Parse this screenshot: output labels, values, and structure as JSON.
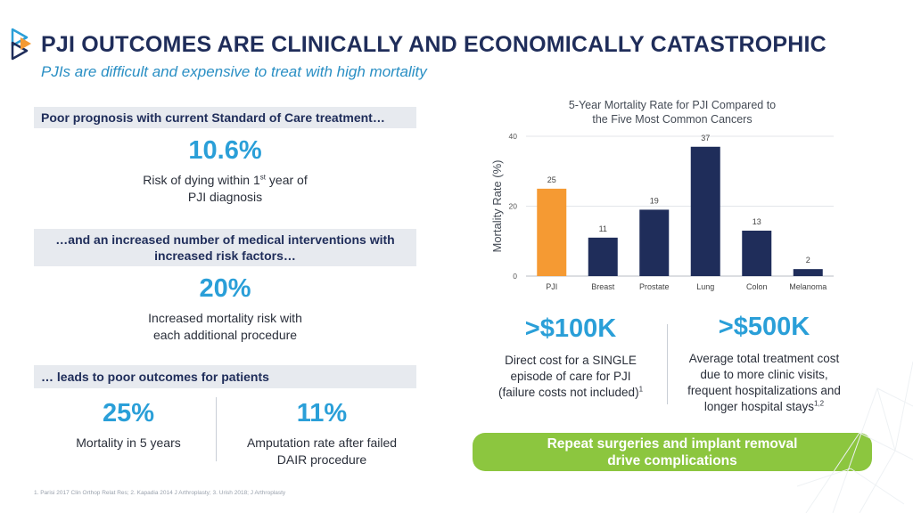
{
  "header": {
    "title": "PJI OUTCOMES ARE CLINICALLY AND ECONOMICALLY CATASTROPHIC",
    "subtitle": "PJIs are difficult and expensive to treat with high mortality"
  },
  "left": {
    "band1": "Poor prognosis with current Standard of Care treatment…",
    "stat1": {
      "value": "10.6%",
      "line1_pre": "Risk of dying within 1",
      "line1_sup": "st",
      "line1_post": " year of",
      "line2": "PJI diagnosis"
    },
    "band2_line1": "…and an increased number of medical interventions with",
    "band2_line2": "increased risk factors…",
    "stat2": {
      "value": "20%",
      "line1": "Increased mortality risk with",
      "line2": "each additional procedure"
    },
    "band3": "… leads to poor outcomes for patients",
    "stat3": {
      "value": "25%",
      "line1": "Mortality in 5 years"
    },
    "stat4": {
      "value": "11%",
      "line1": "Amputation rate after failed",
      "line2": "DAIR procedure"
    }
  },
  "footnote": "1. Parisi 2017 Clin Orthop Relat Res; 2. Kapadia 2014 J Arthroplasty; 3. Urish 2018; J Arthroplasty",
  "chart_data": {
    "type": "bar",
    "title_line1": "5-Year Mortality Rate for PJI Compared to",
    "title_line2": "the Five Most Common Cancers",
    "ylabel": "Mortality Rate (%)",
    "xlabel": "",
    "categories": [
      "PJI",
      "Breast",
      "Prostate",
      "Lung",
      "Colon",
      "Melanoma"
    ],
    "values": [
      25,
      11,
      19,
      37,
      13,
      2
    ],
    "ylim": [
      0,
      40
    ],
    "yticks": [
      0,
      20,
      40
    ],
    "grid": true,
    "colors": {
      "highlight": "#f59a33",
      "bar": "#1f2d5a"
    }
  },
  "costs": {
    "c1": {
      "value": ">$100K",
      "line1": "Direct cost for a SINGLE",
      "line2": "episode of care for PJI",
      "line3": "(failure costs not included)",
      "line3_sup": "1"
    },
    "c2": {
      "value": ">$500K",
      "line1": "Average total treatment cost",
      "line2": "due to more clinic visits,",
      "line3": "frequent hospitalizations and",
      "line4": "longer hospital stays",
      "line4_sup": "1,2"
    }
  },
  "callout": {
    "line1": "Repeat surgeries and implant removal",
    "line2": "drive complications"
  },
  "colors": {
    "navy": "#1f2d5a",
    "blue": "#2a9fd8",
    "green": "#8cc63f",
    "orange": "#f59a33"
  }
}
